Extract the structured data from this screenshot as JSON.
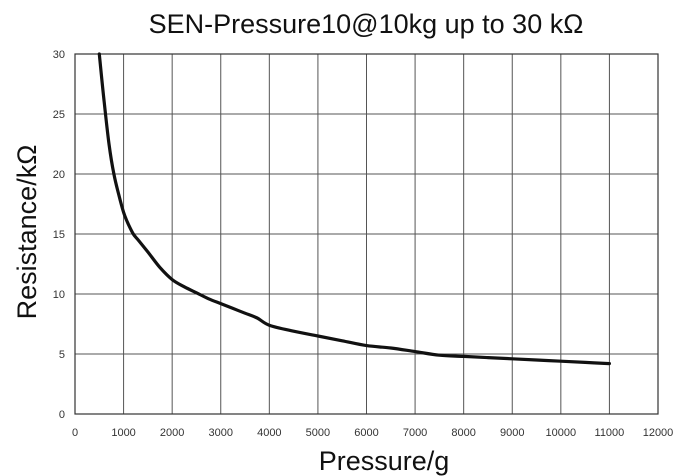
{
  "chart_data": {
    "type": "line",
    "title": "SEN-Pressure10@10kg up to 30 kΩ",
    "xlabel": "Pressure/g",
    "ylabel": "Resistance/kΩ",
    "xlim": [
      0,
      12000
    ],
    "ylim": [
      0,
      30
    ],
    "xticks": [
      0,
      1000,
      2000,
      3000,
      4000,
      5000,
      6000,
      7000,
      8000,
      9000,
      10000,
      11000,
      12000
    ],
    "xtick_labels": [
      "0",
      "1000",
      "2000",
      "3000",
      "4000",
      "5000",
      "6000",
      "7000",
      "8000",
      "9000",
      "10000",
      "11000",
      "12000"
    ],
    "yticks": [
      0,
      5,
      10,
      15,
      20,
      25,
      30
    ],
    "ytick_labels": [
      "0",
      "5",
      "10",
      "15",
      "20",
      "25",
      "30"
    ],
    "grid": true,
    "legend": false,
    "line_color": "#111111",
    "series": [
      {
        "x": [
          500,
          600,
          700,
          800,
          900,
          1000,
          1100,
          1200,
          1300,
          1500,
          1750,
          2000,
          2250,
          2500,
          2750,
          3000,
          3250,
          3500,
          3750,
          4000,
          4500,
          5000,
          5500,
          6000,
          6500,
          7000,
          7500,
          8000,
          8500,
          9000,
          9500,
          10000,
          10500,
          11000
        ],
        "y": [
          30.0,
          26.0,
          22.5,
          20.0,
          18.3,
          16.8,
          15.8,
          15.0,
          14.5,
          13.5,
          12.2,
          11.2,
          10.6,
          10.1,
          9.6,
          9.2,
          8.8,
          8.4,
          8.0,
          7.4,
          6.9,
          6.5,
          6.1,
          5.7,
          5.5,
          5.2,
          4.9,
          4.8,
          4.7,
          4.6,
          4.5,
          4.4,
          4.3,
          4.2
        ]
      }
    ]
  }
}
